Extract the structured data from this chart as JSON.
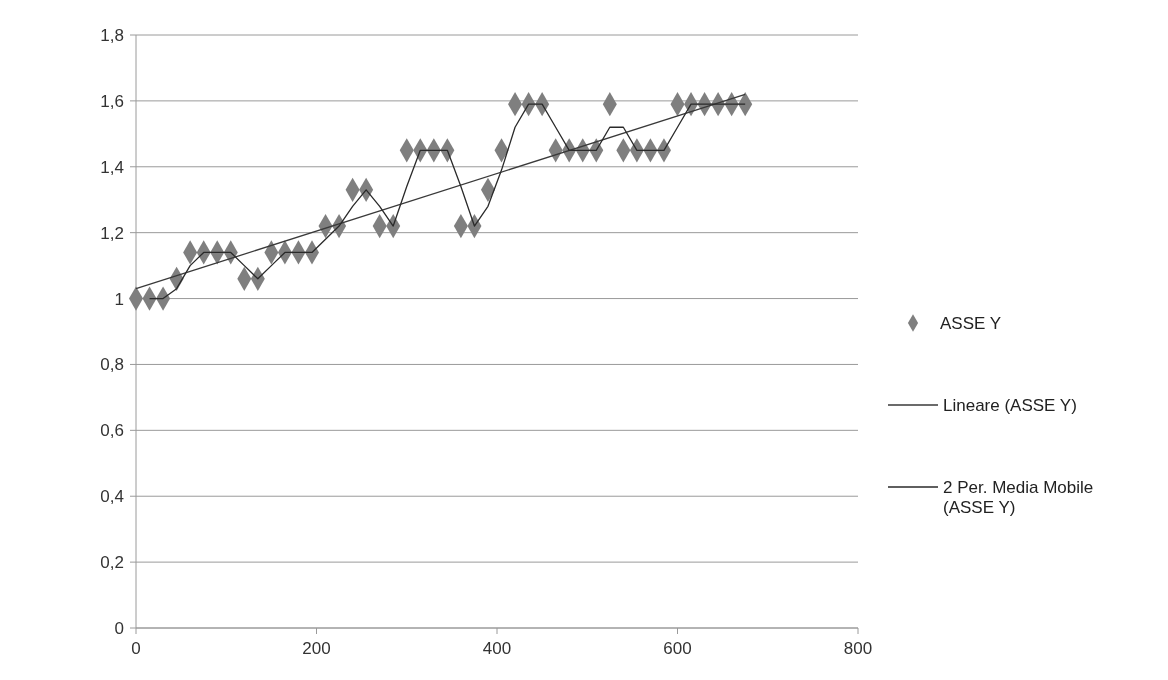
{
  "chart_data": {
    "type": "scatter",
    "xlim": [
      0,
      800
    ],
    "xticks": [
      0,
      200,
      400,
      600,
      800
    ],
    "ylim": [
      0,
      1.8
    ],
    "yticks": [
      {
        "value": 0,
        "label": "0"
      },
      {
        "value": 0.2,
        "label": "0,2"
      },
      {
        "value": 0.4,
        "label": "0,4"
      },
      {
        "value": 0.6,
        "label": "0,6"
      },
      {
        "value": 0.8,
        "label": "0,8"
      },
      {
        "value": 1,
        "label": "1"
      },
      {
        "value": 1.2,
        "label": "1,2"
      },
      {
        "value": 1.4,
        "label": "1,4"
      },
      {
        "value": 1.6,
        "label": "1,6"
      },
      {
        "value": 1.8,
        "label": "1,8"
      }
    ],
    "grid": "y",
    "legend": "right",
    "series": [
      {
        "name": "ASSE Y",
        "marker": "diamond",
        "color": "#7f7f7f",
        "x": [
          0,
          15,
          30,
          45,
          60,
          75,
          90,
          105,
          120,
          135,
          150,
          165,
          180,
          195,
          210,
          225,
          240,
          255,
          270,
          285,
          300,
          315,
          330,
          345,
          360,
          375,
          390,
          405,
          420,
          435,
          450,
          465,
          480,
          495,
          510,
          525,
          540,
          555,
          570,
          585,
          600,
          615,
          630,
          645,
          660,
          675
        ],
        "values": [
          1,
          1,
          1,
          1.06,
          1.14,
          1.14,
          1.14,
          1.14,
          1.06,
          1.06,
          1.14,
          1.14,
          1.14,
          1.14,
          1.22,
          1.22,
          1.33,
          1.33,
          1.22,
          1.22,
          1.45,
          1.45,
          1.45,
          1.45,
          1.22,
          1.22,
          1.33,
          1.45,
          1.59,
          1.59,
          1.59,
          1.45,
          1.45,
          1.45,
          1.45,
          1.59,
          1.45,
          1.45,
          1.45,
          1.45,
          1.59,
          1.59,
          1.59,
          1.59,
          1.59,
          1.59
        ]
      },
      {
        "name": "Lineare (ASSE Y)",
        "type": "line",
        "marker": "none",
        "color": "#3a3a3a",
        "x": [
          0,
          675
        ],
        "values": [
          1.03,
          1.62
        ]
      },
      {
        "name": "2 Per. Media Mobile (ASSE Y)",
        "type": "line",
        "marker": "none",
        "color": "#2a2a2a",
        "x": [
          15,
          30,
          45,
          60,
          75,
          90,
          105,
          120,
          135,
          150,
          165,
          180,
          195,
          210,
          225,
          240,
          255,
          270,
          285,
          300,
          315,
          330,
          345,
          360,
          375,
          390,
          405,
          420,
          435,
          450,
          465,
          480,
          495,
          510,
          525,
          540,
          555,
          570,
          585,
          600,
          615,
          630,
          645,
          660,
          675
        ],
        "values": [
          1,
          1,
          1.03,
          1.1,
          1.14,
          1.14,
          1.14,
          1.1,
          1.06,
          1.1,
          1.14,
          1.14,
          1.14,
          1.18,
          1.22,
          1.28,
          1.33,
          1.28,
          1.22,
          1.34,
          1.45,
          1.45,
          1.45,
          1.34,
          1.22,
          1.28,
          1.39,
          1.52,
          1.59,
          1.59,
          1.52,
          1.45,
          1.45,
          1.45,
          1.52,
          1.52,
          1.45,
          1.45,
          1.45,
          1.52,
          1.59,
          1.59,
          1.59,
          1.59,
          1.59
        ]
      }
    ]
  }
}
